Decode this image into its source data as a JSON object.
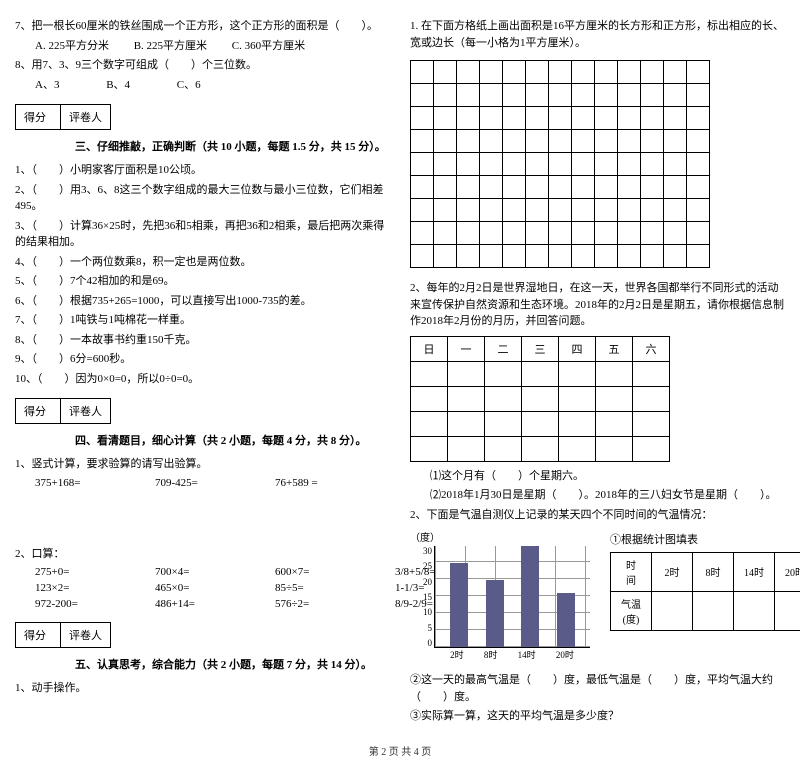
{
  "left": {
    "q7": "7、把一根长60厘米的铁丝围成一个正方形，这个正方形的面积是（　　）。",
    "q7opts": [
      "A. 225平方分米",
      "B. 225平方厘米",
      "C. 360平方厘米"
    ],
    "q8": "8、用7、3、9三个数字可组成（　　）个三位数。",
    "q8opts": [
      "A、3",
      "B、4",
      "C、6"
    ],
    "score": {
      "a": "得分",
      "b": "评卷人"
    },
    "sec3_title": "三、仔细推敲，正确判断（共 10 小题，每题 1.5 分，共 15 分）。",
    "judge": [
      "1、（　　）小明家客厅面积是10公顷。",
      "2、（　　）用3、6、8这三个数字组成的最大三位数与最小三位数，它们相差495。",
      "3、（　　）计算36×25时，先把36和5相乘，再把36和2相乘，最后把两次乘得的结果相加。",
      "4、（　　）一个两位数乘8，积一定也是两位数。",
      "5、（　　）7个42相加的和是69。",
      "6、（　　）根据735+265=1000，可以直接写出1000-735的差。",
      "7、（　　）1吨铁与1吨棉花一样重。",
      "8、（　　）一本故事书约重150千克。",
      "9、（　　）6分=600秒。",
      "10、（　　）因为0×0=0，所以0÷0=0。"
    ],
    "sec4_title": "四、看清题目，细心计算（共 2 小题，每题 4 分，共 8 分）。",
    "calc1_label": "1、竖式计算，要求验算的请写出验算。",
    "calc1": [
      "375+168=",
      "709-425=",
      "76+589 ="
    ],
    "calc2_label": "2、口算：",
    "calc2": [
      [
        "275+0=",
        "700×4=",
        "600×7=",
        "3/8+5/8="
      ],
      [
        "123×2=",
        "465×0=",
        "85÷5=",
        "1-1/3="
      ],
      [
        "972-200=",
        "486+14=",
        "576÷2=",
        "8/9-2/9="
      ]
    ],
    "sec5_title": "五、认真思考，综合能力（共 2 小题，每题 7 分，共 14 分）。",
    "q5_1": "1、动手操作。"
  },
  "right": {
    "r1": "1. 在下面方格纸上画出面积是16平方厘米的长方形和正方形，标出相应的长、宽或边长（每一小格为1平方厘米）。",
    "grid": {
      "rows": 9,
      "cols": 13
    },
    "r2": "2、每年的2月2日是世界湿地日，在这一天，世界各国都举行不同形式的活动来宣传保护自然资源和生态环境。2018年的2月2日是星期五，请你根据信息制作2018年2月份的月历，并回答问题。",
    "calendar": {
      "header": [
        "日",
        "一",
        "二",
        "三",
        "四",
        "五",
        "六"
      ],
      "rows": 4
    },
    "r2q1": "⑴这个月有（　　）个星期六。",
    "r2q2": "⑵2018年1月30日是星期（　　）。2018年的三八妇女节是星期（　　）。",
    "r3": "2、下面是气温自测仪上记录的某天四个不同时间的气温情况：",
    "chart": {
      "y_label": "（度）",
      "y_ticks": [
        "30",
        "25",
        "20",
        "15",
        "10",
        "5",
        "0"
      ],
      "x_ticks": [
        "2时",
        "8时",
        "14时",
        "20时"
      ],
      "bars": [
        25,
        20,
        30,
        16
      ],
      "bar_color": "#5b5b8a",
      "grid_color": "#999999",
      "ymax": 30
    },
    "fill_title": "①根据统计图填表",
    "data_table": {
      "row1": [
        "时　间",
        "2时",
        "8时",
        "14时",
        "20时"
      ],
      "row2_label": "气温(度)"
    },
    "r3q2": "②这一天的最高气温是（　　）度，最低气温是（　　）度，平均气温大约（　　）度。",
    "r3q3": "③实际算一算，这天的平均气温是多少度？"
  },
  "footer": "第 2 页  共 4 页"
}
